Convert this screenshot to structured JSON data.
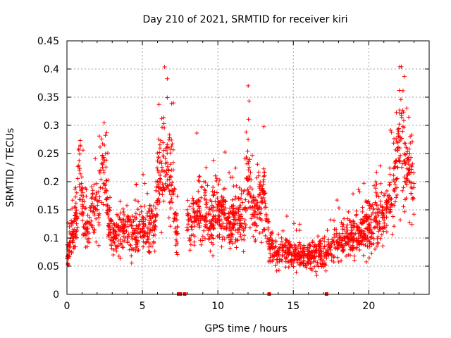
{
  "chart_data": {
    "type": "scatter",
    "title": "Day 210 of 2021, SRMTID for receiver kiri",
    "xlabel": "GPS time / hours",
    "ylabel": "SRMTID / TECUs",
    "xlim": [
      0,
      24
    ],
    "ylim": [
      0,
      0.45
    ],
    "x_ticks": [
      0,
      5,
      10,
      15,
      20
    ],
    "x_tick_labels": [
      "0",
      "5",
      "10",
      "15",
      "20"
    ],
    "y_ticks": [
      0,
      0.05,
      0.1,
      0.15,
      0.2,
      0.25,
      0.3,
      0.35,
      0.4,
      0.45
    ],
    "y_tick_labels": [
      "0",
      "0.05",
      "0.1",
      "0.15",
      "0.2",
      "0.25",
      "0.3",
      "0.35",
      "0.4",
      "0.45"
    ],
    "grid": true,
    "marker": "+",
    "series": [
      {
        "name": "SRMTID",
        "color": "#ff0000",
        "marker": "+",
        "description_profile": "hourly typical level",
        "x": [
          0.0,
          0.1,
          0.2,
          0.4,
          0.5,
          0.7,
          0.8,
          0.9,
          1.0,
          1.2,
          1.4,
          1.5,
          1.7,
          1.9,
          2.1,
          2.2,
          2.4,
          2.5,
          2.6,
          2.8,
          3.0,
          3.2,
          3.5,
          3.8,
          4.0,
          4.3,
          4.6,
          4.9,
          5.2,
          5.5,
          5.8,
          6.0,
          6.2,
          6.4,
          6.6,
          6.8,
          7.0,
          7.2,
          7.5,
          7.8,
          8.0,
          8.3,
          8.6,
          8.9,
          9.2,
          9.5,
          9.8,
          10.1,
          10.4,
          10.7,
          11.0,
          11.3,
          11.6,
          11.8,
          12.0,
          12.2,
          12.5,
          12.8,
          13.1,
          13.4,
          13.6,
          14.0,
          14.3,
          14.6,
          14.9,
          15.2,
          15.5,
          15.8,
          16.1,
          16.4,
          16.7,
          17.0,
          17.3,
          17.6,
          17.9,
          18.2,
          18.5,
          18.8,
          19.1,
          19.4,
          19.7,
          20.0,
          20.3,
          20.6,
          20.9,
          21.2,
          21.5,
          21.8,
          22.0,
          22.2,
          22.4,
          22.6,
          22.8,
          23.0
        ],
        "y": [
          0.08,
          0.07,
          0.1,
          0.11,
          0.12,
          0.15,
          0.21,
          0.2,
          0.16,
          0.12,
          0.1,
          0.13,
          0.17,
          0.15,
          0.15,
          0.2,
          0.23,
          0.22,
          0.17,
          0.12,
          0.11,
          0.1,
          0.11,
          0.12,
          0.12,
          0.1,
          0.11,
          0.12,
          0.12,
          0.12,
          0.12,
          0.2,
          0.22,
          0.25,
          0.22,
          0.2,
          0.22,
          0.12,
          0.1,
          0.12,
          0.12,
          0.14,
          0.16,
          0.14,
          0.14,
          0.12,
          0.15,
          0.14,
          0.15,
          0.12,
          0.13,
          0.14,
          0.13,
          0.15,
          0.22,
          0.18,
          0.13,
          0.18,
          0.17,
          0.09,
          0.08,
          0.07,
          0.08,
          0.08,
          0.07,
          0.07,
          0.07,
          0.06,
          0.07,
          0.07,
          0.08,
          0.06,
          0.08,
          0.09,
          0.1,
          0.09,
          0.1,
          0.1,
          0.1,
          0.11,
          0.11,
          0.12,
          0.13,
          0.13,
          0.14,
          0.15,
          0.17,
          0.22,
          0.3,
          0.28,
          0.24,
          0.22,
          0.2,
          0.17
        ]
      }
    ],
    "gap_markers_x": [
      7.4,
      7.5,
      7.8,
      13.4,
      17.2
    ]
  }
}
